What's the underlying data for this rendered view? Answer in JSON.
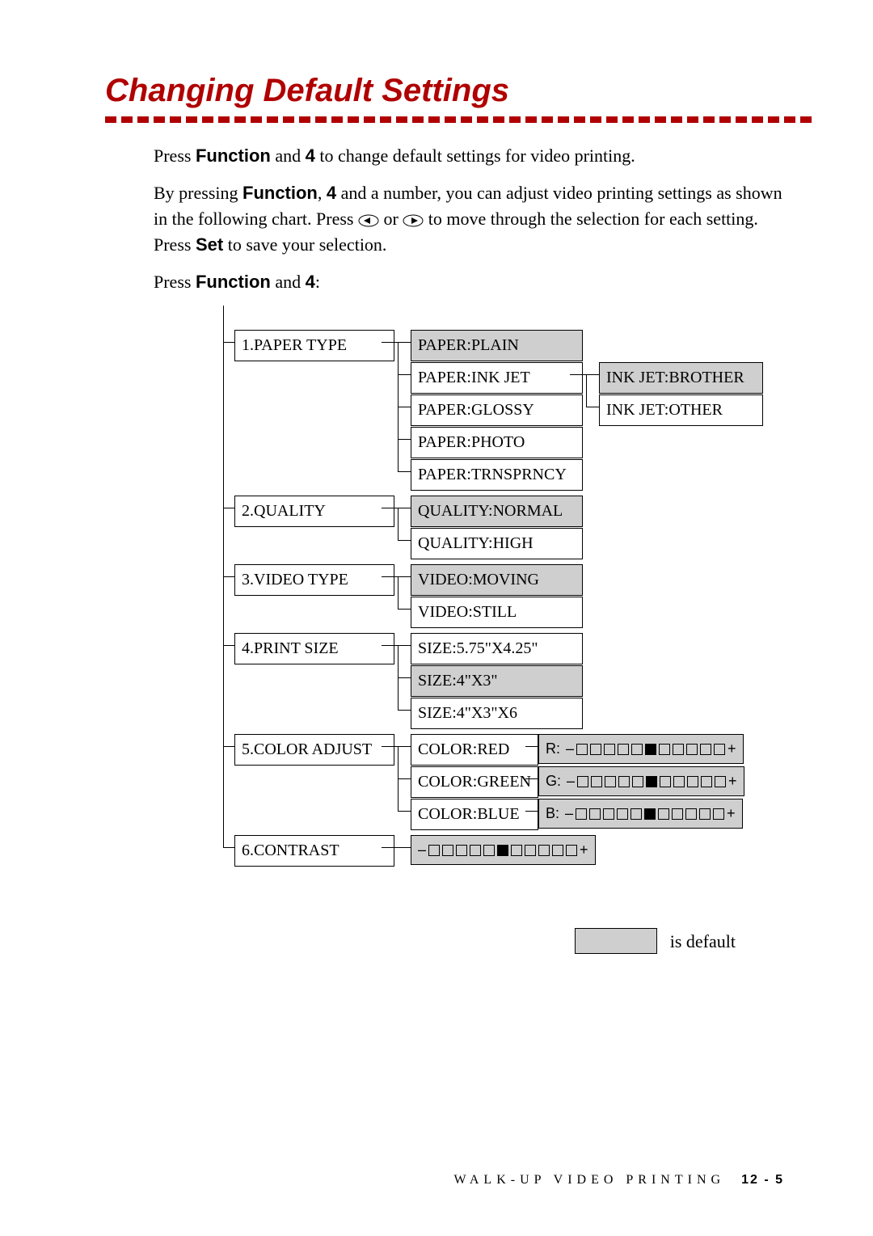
{
  "title": "Changing Default Settings",
  "para1_a": "Press ",
  "para1_b": "Function",
  "para1_c": " and ",
  "para1_d": "4",
  "para1_e": " to change default settings for video printing.",
  "para2_a": "By pressing ",
  "para2_b": "Function",
  "para2_c": ", ",
  "para2_d": "4",
  "para2_e": " and a number, you can adjust video printing settings as shown in the following chart. Press ",
  "para2_f": " or ",
  "para2_g": " to move through the selection for each setting. Press ",
  "para2_h": "Set",
  "para2_i": " to save your selection.",
  "para3_a": "Press ",
  "para3_b": "Function",
  "para3_c": " and ",
  "para3_d": "4",
  "para3_e": ":",
  "menu": {
    "m1": "1.PAPER TYPE",
    "m2": "2.QUALITY",
    "m3": "3.VIDEO TYPE",
    "m4": "4.PRINT SIZE",
    "m5": "5.COLOR ADJUST",
    "m6": "6.CONTRAST",
    "p1a": "PAPER:PLAIN",
    "p1b": "PAPER:INK JET",
    "p1c": "PAPER:GLOSSY",
    "p1d": "PAPER:PHOTO",
    "p1e": "PAPER:TRNSPRNCY",
    "ij1": "INK JET:BROTHER",
    "ij2": "INK JET:OTHER",
    "q1": "QUALITY:NORMAL",
    "q2": "QUALITY:HIGH",
    "v1": "VIDEO:MOVING",
    "v2": "VIDEO:STILL",
    "s1": "SIZE:5.75\"X4.25\"",
    "s2": "SIZE:4\"X3\"",
    "s3": "SIZE:4\"X3\"X6",
    "cr": "COLOR:RED",
    "cg": "COLOR:GREEN",
    "cb": "COLOR:BLUE",
    "rl": "R:",
    "gl": "G:",
    "bl": "B:"
  },
  "legend_text": "is default",
  "footer_a": "WALK-UP VIDEO PRINTING",
  "footer_b": "12 - 5",
  "colors": {
    "accent": "#b00000",
    "shade": "#cfcfcf"
  }
}
